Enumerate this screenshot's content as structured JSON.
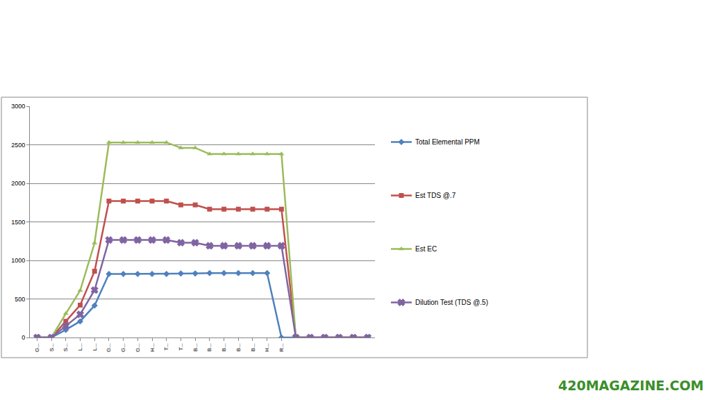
{
  "chart_data": {
    "type": "line",
    "categories": [
      "G...",
      "S...",
      "S...",
      "L...",
      "L...",
      "G...",
      "G...",
      "G...",
      "H...",
      "T...",
      "T...",
      "B...",
      "B...",
      "B...",
      "B...",
      "B...",
      "H...",
      "R...",
      null,
      null,
      null,
      null,
      null,
      null
    ],
    "series": [
      {
        "name": "Total Elemental PPM",
        "color": "#4f81bd",
        "marker": "diamond",
        "values": [
          0,
          0,
          100,
          210,
          415,
          825,
          825,
          825,
          825,
          825,
          830,
          830,
          835,
          835,
          835,
          835,
          835,
          0,
          0,
          0,
          0,
          0,
          0,
          0
        ]
      },
      {
        "name": "Est TDS @.7",
        "color": "#c0504d",
        "marker": "square",
        "values": [
          0,
          0,
          210,
          420,
          860,
          1770,
          1770,
          1770,
          1770,
          1770,
          1720,
          1720,
          1665,
          1665,
          1665,
          1665,
          1665,
          1665,
          0,
          0,
          0,
          0,
          0,
          0
        ]
      },
      {
        "name": "Est EC",
        "color": "#9bbb59",
        "marker": "triangle-up",
        "values": [
          0,
          0,
          310,
          610,
          1225,
          2530,
          2530,
          2530,
          2530,
          2530,
          2460,
          2460,
          2380,
          2380,
          2380,
          2380,
          2380,
          2380,
          0,
          0,
          0,
          0,
          0,
          0
        ]
      },
      {
        "name": "Dilution Test (TDS @.5)",
        "color": "#8064a2",
        "marker": "x",
        "values": [
          0,
          0,
          150,
          300,
          615,
          1265,
          1265,
          1265,
          1265,
          1265,
          1230,
          1230,
          1190,
          1190,
          1190,
          1190,
          1190,
          1190,
          0,
          0,
          0,
          0,
          0,
          0
        ]
      }
    ],
    "ylim": [
      0,
      3000
    ],
    "yticks": [
      0,
      500,
      1000,
      1500,
      2000,
      2500,
      3000
    ],
    "grid": true,
    "legend": "right",
    "annotations": [
      "420MAGAZINE.COM"
    ]
  }
}
